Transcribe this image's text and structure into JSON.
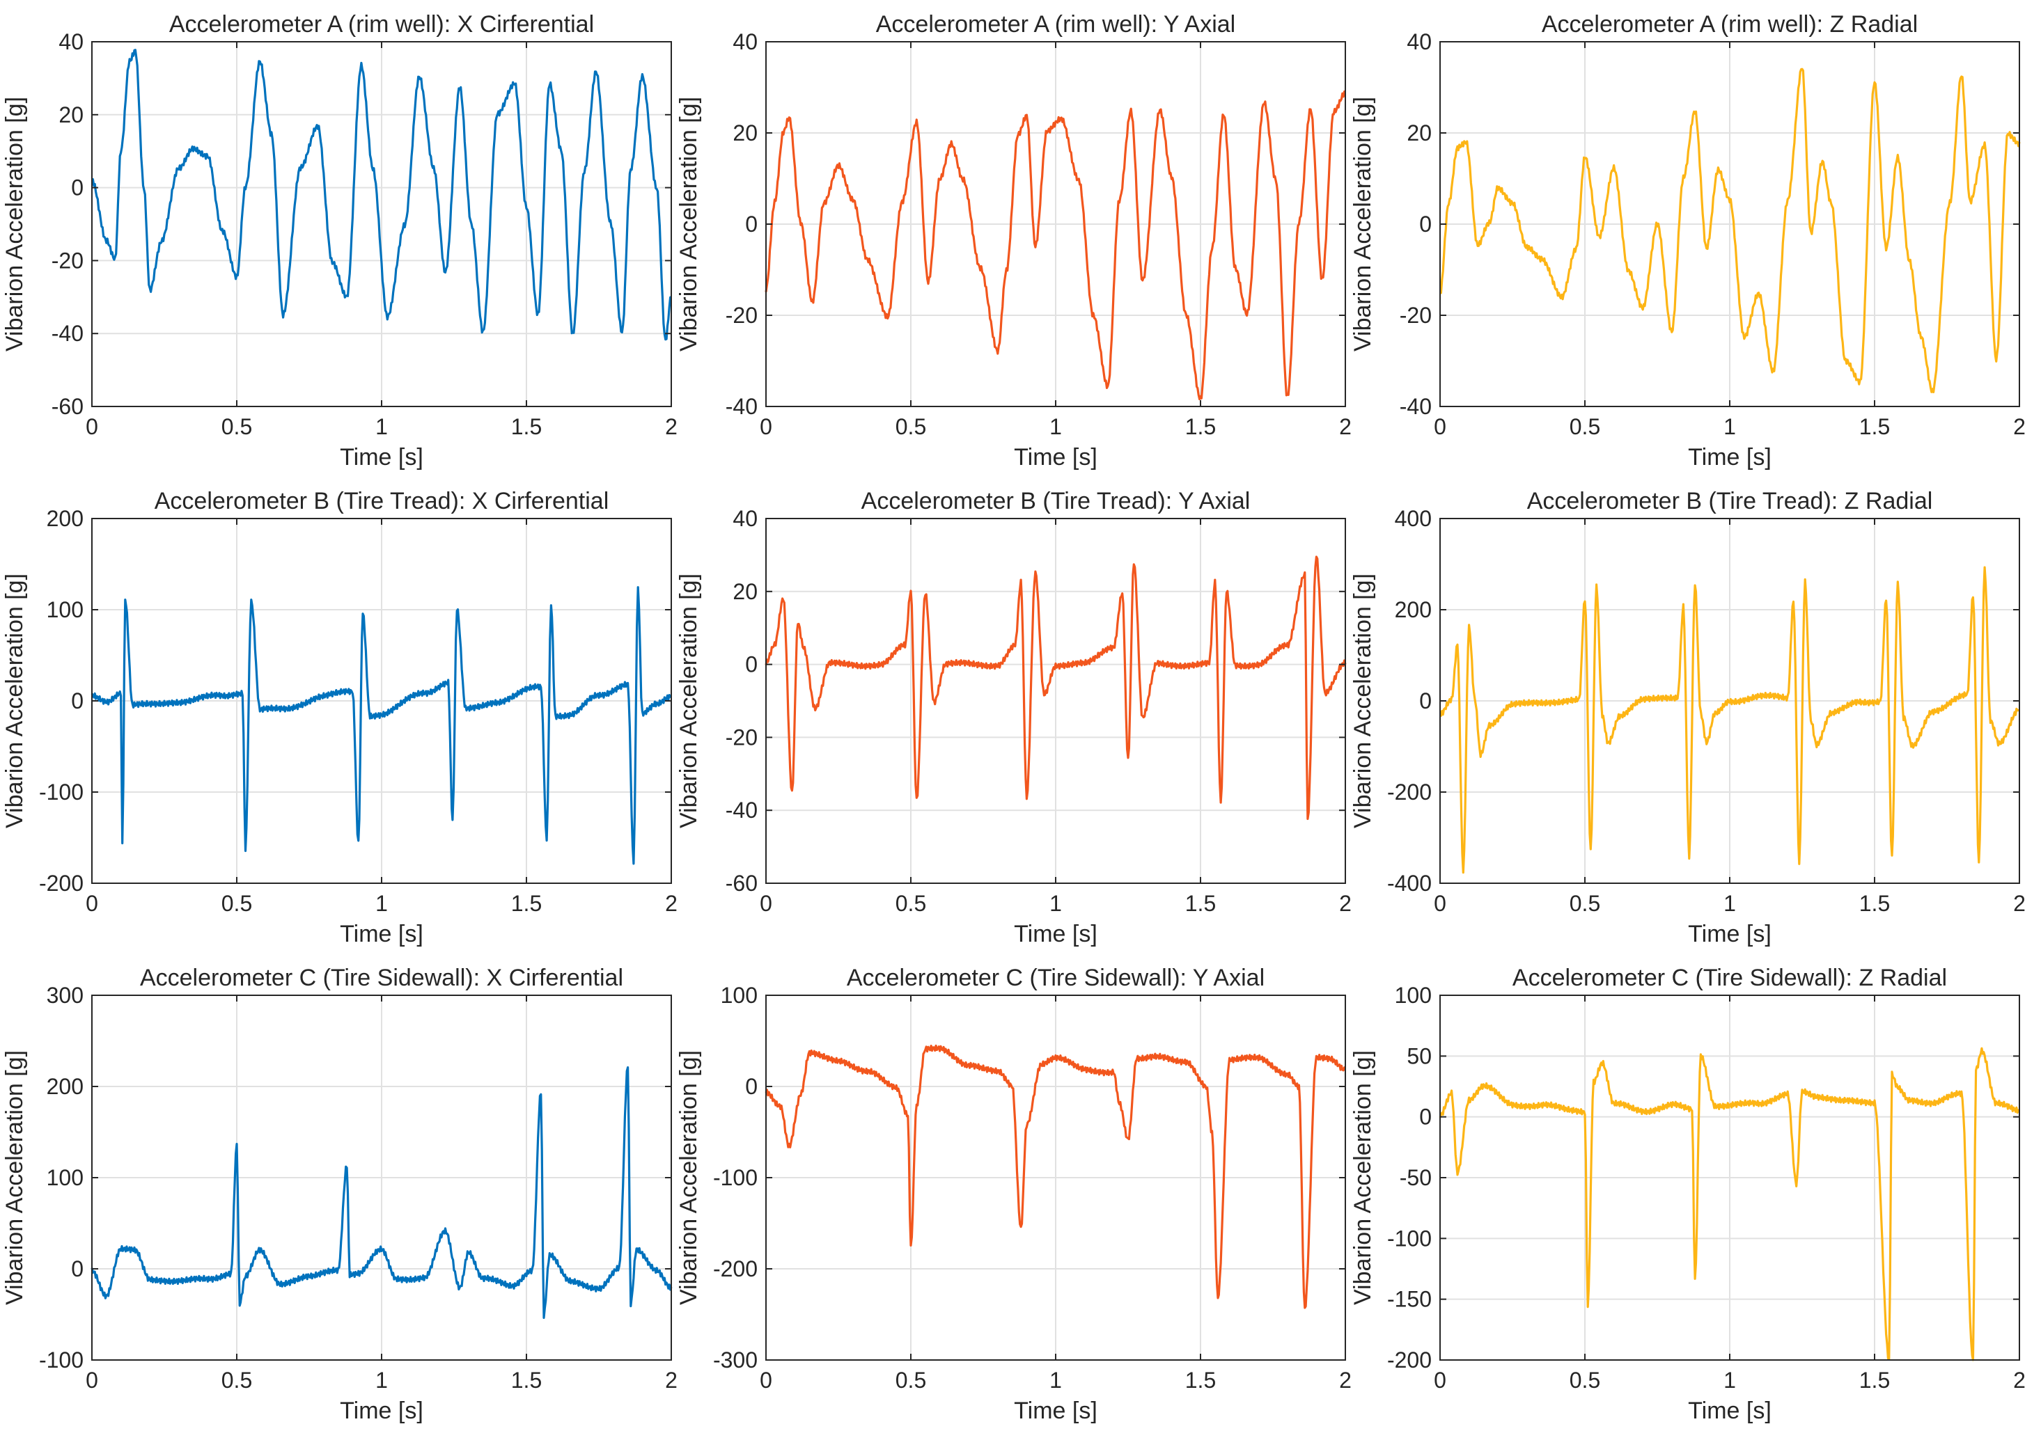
{
  "figure": {
    "xlabel": "Time [s]",
    "ylabel": "Vibarion Acceleration [g]"
  },
  "colors": {
    "x_circumferential": "#0072BD",
    "y_axial": "#F2561D",
    "z_radial": "#FDB515",
    "axis": "#262626",
    "grid": "#e1e1e1"
  },
  "chart_data": [
    {
      "type": "line",
      "title": "Accelerometer A (rim well): X Cirferential",
      "xlabel": "Time [s]",
      "ylabel": "Vibarion Acceleration [g]",
      "xlim": [
        0,
        2
      ],
      "ylim": [
        -60,
        40
      ],
      "xticks": [
        0,
        0.5,
        1,
        1.5,
        2
      ],
      "xtick_labels": [
        "0",
        "0.5",
        "1",
        "1.5",
        "2"
      ],
      "yticks": [
        -60,
        -40,
        -20,
        0,
        20,
        40
      ],
      "ytick_labels": [
        "-60",
        "-40",
        "-20",
        "0",
        "20",
        "40"
      ],
      "grid": true,
      "color_key": "x_circumferential",
      "x": [
        0,
        0.05,
        0.08,
        0.1,
        0.13,
        0.15,
        0.18,
        0.2,
        0.24,
        0.3,
        0.35,
        0.4,
        0.45,
        0.5,
        0.53,
        0.58,
        0.62,
        0.66,
        0.72,
        0.78,
        0.83,
        0.88,
        0.93,
        0.97,
        1.02,
        1.08,
        1.13,
        1.18,
        1.22,
        1.27,
        1.31,
        1.35,
        1.4,
        1.46,
        1.5,
        1.54,
        1.58,
        1.62,
        1.66,
        1.7,
        1.74,
        1.79,
        1.83,
        1.86,
        1.9,
        1.95,
        1.98,
        2.0
      ],
      "y": [
        2,
        -15,
        -20,
        10,
        35,
        38,
        0,
        -28,
        -15,
        5,
        11,
        9,
        -12,
        -25,
        0,
        35,
        15,
        -35,
        5,
        17,
        -20,
        -30,
        33,
        5,
        -35,
        -10,
        30,
        5,
        -23,
        28,
        -10,
        -40,
        20,
        29,
        -5,
        -35,
        28,
        10,
        -40,
        5,
        32,
        -10,
        -40,
        5,
        31,
        0,
        -42,
        -30
      ]
    },
    {
      "type": "line",
      "title": "Accelerometer A (rim well): Y Axial",
      "xlabel": "Time [s]",
      "ylabel": "Vibarion Acceleration [g]",
      "xlim": [
        0,
        2
      ],
      "ylim": [
        -40,
        40
      ],
      "xticks": [
        0,
        0.5,
        1,
        1.5,
        2
      ],
      "xtick_labels": [
        "0",
        "0.5",
        "1",
        "1.5",
        "2"
      ],
      "yticks": [
        -40,
        -20,
        0,
        20,
        40
      ],
      "ytick_labels": [
        "-40",
        "-20",
        "0",
        "20",
        "40"
      ],
      "grid": true,
      "color_key": "y_axial",
      "x": [
        0,
        0.03,
        0.06,
        0.08,
        0.12,
        0.16,
        0.2,
        0.25,
        0.3,
        0.35,
        0.42,
        0.47,
        0.52,
        0.56,
        0.6,
        0.64,
        0.68,
        0.74,
        0.8,
        0.83,
        0.87,
        0.9,
        0.93,
        0.97,
        1.02,
        1.08,
        1.13,
        1.18,
        1.22,
        1.26,
        1.3,
        1.36,
        1.4,
        1.45,
        1.5,
        1.54,
        1.58,
        1.62,
        1.66,
        1.72,
        1.76,
        1.8,
        1.84,
        1.88,
        1.92,
        1.96,
        2.0
      ],
      "y": [
        -14,
        5,
        20,
        23,
        0,
        -17,
        5,
        13,
        5,
        -8,
        -20,
        5,
        22,
        -13,
        10,
        18,
        10,
        -10,
        -28,
        -10,
        20,
        24,
        -5,
        20,
        23,
        10,
        -20,
        -36,
        5,
        25,
        -12,
        25,
        10,
        -20,
        -38,
        -5,
        24,
        -10,
        -20,
        27,
        10,
        -38,
        0,
        25,
        -12,
        25,
        29
      ]
    },
    {
      "type": "line",
      "title": "Accelerometer A (rim well): Z Radial",
      "xlabel": "Time [s]",
      "ylabel": "Vibarion Acceleration [g]",
      "xlim": [
        0,
        2
      ],
      "ylim": [
        -40,
        40
      ],
      "xticks": [
        0,
        0.5,
        1,
        1.5,
        2
      ],
      "xtick_labels": [
        "0",
        "0.5",
        "1",
        "1.5",
        "2"
      ],
      "yticks": [
        -40,
        -20,
        0,
        20,
        40
      ],
      "ytick_labels": [
        "-40",
        "-20",
        "0",
        "20",
        "40"
      ],
      "grid": true,
      "color_key": "z_radial",
      "x": [
        0,
        0.03,
        0.06,
        0.09,
        0.13,
        0.17,
        0.2,
        0.25,
        0.3,
        0.35,
        0.42,
        0.47,
        0.5,
        0.55,
        0.6,
        0.65,
        0.7,
        0.75,
        0.8,
        0.84,
        0.88,
        0.92,
        0.96,
        1.0,
        1.05,
        1.1,
        1.15,
        1.2,
        1.25,
        1.28,
        1.32,
        1.35,
        1.4,
        1.45,
        1.5,
        1.54,
        1.58,
        1.62,
        1.66,
        1.7,
        1.76,
        1.8,
        1.83,
        1.88,
        1.92,
        1.96,
        2.0
      ],
      "y": [
        -15,
        5,
        17,
        18,
        -5,
        0,
        8,
        5,
        -5,
        -8,
        -16,
        -5,
        15,
        -3,
        12,
        -10,
        -18,
        0,
        -24,
        10,
        25,
        -5,
        12,
        5,
        -25,
        -15,
        -32,
        5,
        34,
        -2,
        14,
        5,
        -30,
        -35,
        31,
        -5,
        15,
        -8,
        -25,
        -37,
        5,
        33,
        5,
        17,
        -30,
        20,
        18
      ]
    },
    {
      "type": "line",
      "title": "Accelerometer B (Tire Tread): X Cirferential",
      "xlabel": "Time [s]",
      "ylabel": "Vibarion Acceleration [g]",
      "xlim": [
        0,
        2
      ],
      "ylim": [
        -200,
        200
      ],
      "xticks": [
        0,
        0.5,
        1,
        1.5,
        2
      ],
      "xtick_labels": [
        "0",
        "0.5",
        "1",
        "1.5",
        "2"
      ],
      "yticks": [
        -200,
        -100,
        0,
        100,
        200
      ],
      "ytick_labels": [
        "-200",
        "-100",
        "0",
        "100",
        "200"
      ],
      "grid": true,
      "color_key": "x_circumferential",
      "x": [
        0,
        0.05,
        0.1,
        0.105,
        0.115,
        0.14,
        0.2,
        0.3,
        0.45,
        0.52,
        0.53,
        0.55,
        0.58,
        0.65,
        0.8,
        0.9,
        0.92,
        0.935,
        0.96,
        1.0,
        1.15,
        1.23,
        1.245,
        1.26,
        1.29,
        1.4,
        1.55,
        1.57,
        1.585,
        1.6,
        1.65,
        1.75,
        1.85,
        1.87,
        1.885,
        1.9,
        1.95,
        2.0
      ],
      "y": [
        5,
        0,
        10,
        -160,
        110,
        -5,
        -5,
        0,
        5,
        10,
        -160,
        110,
        -10,
        -10,
        5,
        10,
        -155,
        95,
        -15,
        -15,
        10,
        20,
        -130,
        100,
        -10,
        0,
        15,
        -150,
        105,
        -15,
        -15,
        5,
        20,
        -175,
        125,
        -15,
        -5,
        5
      ]
    },
    {
      "type": "line",
      "title": "Accelerometer B (Tire Tread): Y Axial",
      "xlabel": "Time [s]",
      "ylabel": "Vibarion Acceleration [g]",
      "xlim": [
        0,
        2
      ],
      "ylim": [
        -60,
        40
      ],
      "xticks": [
        0,
        0.5,
        1,
        1.5,
        2
      ],
      "xtick_labels": [
        "0",
        "0.5",
        "1",
        "1.5",
        "2"
      ],
      "yticks": [
        -60,
        -40,
        -20,
        0,
        20,
        40
      ],
      "ytick_labels": [
        "-60",
        "-40",
        "-20",
        "0",
        "20",
        "40"
      ],
      "grid": true,
      "color_key": "y_axial",
      "x": [
        0,
        0.03,
        0.06,
        0.09,
        0.11,
        0.13,
        0.17,
        0.22,
        0.3,
        0.4,
        0.48,
        0.5,
        0.52,
        0.55,
        0.58,
        0.62,
        0.7,
        0.8,
        0.86,
        0.88,
        0.9,
        0.93,
        0.96,
        1.0,
        1.1,
        1.2,
        1.23,
        1.25,
        1.27,
        1.3,
        1.35,
        1.45,
        1.53,
        1.55,
        1.57,
        1.59,
        1.62,
        1.7,
        1.8,
        1.86,
        1.87,
        1.9,
        1.93,
        2.0
      ],
      "y": [
        0,
        5,
        18,
        -35,
        12,
        5,
        -12,
        0,
        0,
        0,
        5,
        20,
        -37,
        20,
        -10,
        0,
        0,
        0,
        5,
        22,
        -37,
        25,
        -8,
        0,
        0,
        5,
        20,
        -26,
        28,
        -15,
        0,
        0,
        0,
        22,
        -38,
        20,
        0,
        0,
        5,
        25,
        -42,
        30,
        -8,
        0
      ]
    },
    {
      "type": "line",
      "title": "Accelerometer B (Tire Tread): Z Radial",
      "xlabel": "Time [s]",
      "ylabel": "Vibarion Acceleration [g]",
      "xlim": [
        0,
        2
      ],
      "ylim": [
        -400,
        400
      ],
      "xticks": [
        0,
        0.5,
        1,
        1.5,
        2
      ],
      "xtick_labels": [
        "0",
        "0.5",
        "1",
        "1.5",
        "2"
      ],
      "yticks": [
        -400,
        -200,
        0,
        200,
        400
      ],
      "ytick_labels": [
        "-400",
        "-200",
        "0",
        "200",
        "400"
      ],
      "grid": true,
      "color_key": "z_radial",
      "x": [
        0,
        0.04,
        0.06,
        0.08,
        0.1,
        0.12,
        0.14,
        0.17,
        0.25,
        0.4,
        0.48,
        0.5,
        0.52,
        0.54,
        0.56,
        0.58,
        0.62,
        0.7,
        0.82,
        0.84,
        0.86,
        0.88,
        0.9,
        0.92,
        0.95,
        1.0,
        1.1,
        1.2,
        1.22,
        1.24,
        1.26,
        1.28,
        1.3,
        1.35,
        1.45,
        1.52,
        1.54,
        1.56,
        1.58,
        1.6,
        1.63,
        1.7,
        1.82,
        1.84,
        1.86,
        1.88,
        1.9,
        1.93,
        2.0
      ],
      "y": [
        -30,
        0,
        120,
        -375,
        160,
        5,
        -115,
        -50,
        -10,
        0,
        0,
        220,
        -330,
        250,
        -30,
        -90,
        -30,
        0,
        10,
        210,
        -340,
        255,
        -30,
        -95,
        -30,
        0,
        10,
        5,
        220,
        -350,
        265,
        -40,
        -95,
        -30,
        0,
        0,
        225,
        -345,
        255,
        -40,
        -100,
        -20,
        10,
        230,
        -355,
        290,
        -40,
        -90,
        -20
      ]
    },
    {
      "type": "line",
      "title": "Accelerometer C (Tire Sidewall): X Cirferential",
      "xlabel": "Time [s]",
      "ylabel": "Vibarion Acceleration [g]",
      "xlim": [
        0,
        2
      ],
      "ylim": [
        -100,
        300
      ],
      "xticks": [
        0,
        0.5,
        1,
        1.5,
        2
      ],
      "xtick_labels": [
        "0",
        "0.5",
        "1",
        "1.5",
        "2"
      ],
      "yticks": [
        -100,
        0,
        100,
        200,
        300
      ],
      "ytick_labels": [
        "-100",
        "0",
        "100",
        "200",
        "300"
      ],
      "grid": true,
      "color_key": "x_circumferential",
      "x": [
        0,
        0.05,
        0.1,
        0.15,
        0.2,
        0.3,
        0.4,
        0.48,
        0.5,
        0.51,
        0.53,
        0.58,
        0.65,
        0.75,
        0.85,
        0.88,
        0.89,
        0.92,
        1.0,
        1.05,
        1.15,
        1.22,
        1.27,
        1.3,
        1.35,
        1.45,
        1.52,
        1.55,
        1.56,
        1.58,
        1.65,
        1.75,
        1.82,
        1.85,
        1.86,
        1.88,
        1.95,
        2.0
      ],
      "y": [
        0,
        -30,
        20,
        20,
        -10,
        -15,
        -10,
        -5,
        135,
        -40,
        -10,
        20,
        -15,
        -10,
        0,
        115,
        -5,
        -5,
        20,
        -10,
        -10,
        40,
        -20,
        20,
        -10,
        -20,
        0,
        195,
        -50,
        15,
        -15,
        -20,
        0,
        220,
        -40,
        20,
        0,
        -20
      ]
    },
    {
      "type": "line",
      "title": "Accelerometer C (Tire Sidewall): Y Axial",
      "xlabel": "Time [s]",
      "ylabel": "Vibarion Acceleration [g]",
      "xlim": [
        0,
        2
      ],
      "ylim": [
        -300,
        100
      ],
      "xticks": [
        0,
        0.5,
        1,
        1.5,
        2
      ],
      "xtick_labels": [
        "0",
        "0.5",
        "1",
        "1.5",
        "2"
      ],
      "yticks": [
        -300,
        -200,
        -100,
        0,
        100
      ],
      "ytick_labels": [
        "-300",
        "-200",
        "-100",
        "0",
        "100"
      ],
      "grid": true,
      "color_key": "y_axial",
      "x": [
        0,
        0.05,
        0.08,
        0.12,
        0.15,
        0.25,
        0.35,
        0.45,
        0.49,
        0.5,
        0.52,
        0.55,
        0.6,
        0.7,
        0.8,
        0.85,
        0.88,
        0.9,
        0.95,
        1.0,
        1.1,
        1.2,
        1.22,
        1.25,
        1.28,
        1.35,
        1.45,
        1.52,
        1.54,
        1.56,
        1.6,
        1.7,
        1.8,
        1.84,
        1.86,
        1.9,
        1.95,
        2.0
      ],
      "y": [
        -5,
        -20,
        -65,
        -10,
        35,
        30,
        15,
        0,
        -30,
        -175,
        -20,
        40,
        40,
        25,
        15,
        0,
        -155,
        -40,
        25,
        30,
        20,
        15,
        -20,
        -60,
        30,
        35,
        25,
        0,
        -50,
        -230,
        30,
        30,
        15,
        0,
        -245,
        30,
        30,
        20
      ]
    },
    {
      "type": "line",
      "title": "Accelerometer C (Tire Sidewall): Z Radial",
      "xlabel": "Time [s]",
      "ylabel": "Vibarion Acceleration [g]",
      "xlim": [
        0,
        2
      ],
      "ylim": [
        -200,
        100
      ],
      "xticks": [
        0,
        0.5,
        1,
        1.5,
        2
      ],
      "xtick_labels": [
        "0",
        "0.5",
        "1",
        "1.5",
        "2"
      ],
      "yticks": [
        -200,
        -150,
        -100,
        -50,
        0,
        50,
        100
      ],
      "ytick_labels": [
        "-200",
        "-150",
        "-100",
        "-50",
        "0",
        "50",
        "100"
      ],
      "grid": true,
      "color_key": "z_radial",
      "x": [
        0,
        0.04,
        0.06,
        0.1,
        0.15,
        0.25,
        0.35,
        0.45,
        0.5,
        0.51,
        0.53,
        0.56,
        0.6,
        0.7,
        0.8,
        0.87,
        0.88,
        0.9,
        0.95,
        1.0,
        1.1,
        1.2,
        1.23,
        1.25,
        1.3,
        1.4,
        1.5,
        1.55,
        1.56,
        1.58,
        1.62,
        1.7,
        1.8,
        1.84,
        1.85,
        1.87,
        1.92,
        2.0
      ],
      "y": [
        0,
        20,
        -45,
        15,
        25,
        10,
        10,
        5,
        5,
        -155,
        30,
        45,
        10,
        5,
        10,
        5,
        -135,
        50,
        10,
        10,
        10,
        20,
        -55,
        20,
        15,
        15,
        10,
        -200,
        35,
        25,
        15,
        10,
        20,
        -200,
        40,
        55,
        10,
        5
      ]
    }
  ]
}
